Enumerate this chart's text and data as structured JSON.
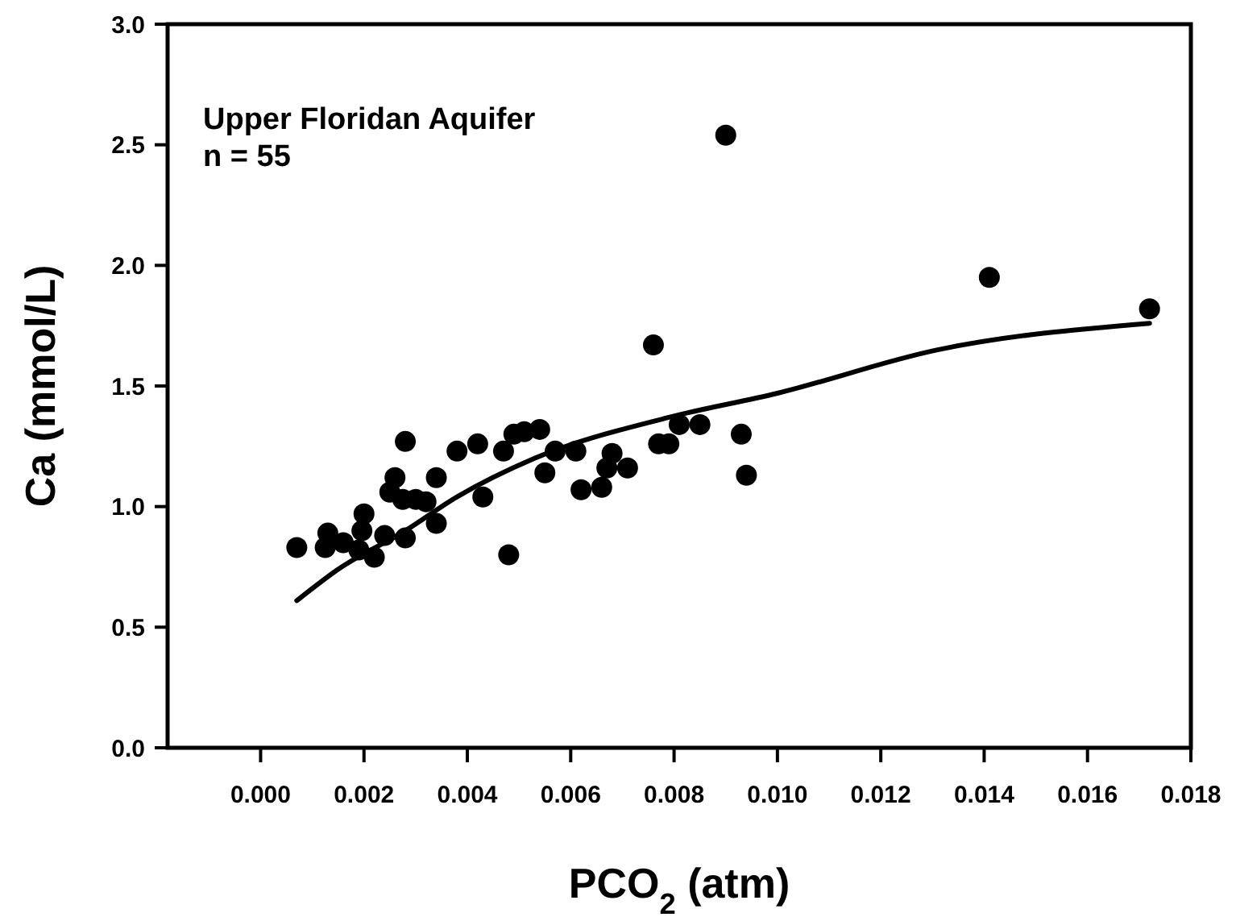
{
  "chart_data": {
    "type": "scatter",
    "xlabel": "PCO$_{2}$ (atm)",
    "ylabel": "Ca (mmol/L)",
    "annotations": [
      "Upper Floridan Aquifer",
      "n = 55"
    ],
    "xlim": [
      -0.0018,
      0.018
    ],
    "ylim": [
      0,
      3
    ],
    "xticks": [
      {
        "value": 0,
        "label": "0.000"
      },
      {
        "value": 0.002,
        "label": "0.002"
      },
      {
        "value": 0.004,
        "label": "0.004"
      },
      {
        "value": 0.006,
        "label": "0.006"
      },
      {
        "value": 0.008,
        "label": "0.008"
      },
      {
        "value": 0.01,
        "label": "0.010"
      },
      {
        "value": 0.012,
        "label": "0.012"
      },
      {
        "value": 0.014,
        "label": "0.014"
      },
      {
        "value": 0.016,
        "label": "0.016"
      },
      {
        "value": 0.018,
        "label": "0.018"
      }
    ],
    "yticks": [
      {
        "value": 0,
        "label": "0.0"
      },
      {
        "value": 0.5,
        "label": "0.5"
      },
      {
        "value": 1,
        "label": "1.0"
      },
      {
        "value": 1.5,
        "label": "1.5"
      },
      {
        "value": 2,
        "label": "2.0"
      },
      {
        "value": 2.5,
        "label": "2.5"
      },
      {
        "value": 3,
        "label": "3.0"
      }
    ],
    "grid": false,
    "series": [
      {
        "type": "scatter",
        "color": "#000000",
        "marker": "circle",
        "x": [
          0.0007,
          0.0013,
          0.00125,
          0.0016,
          0.0019,
          0.002,
          0.00196,
          0.0022,
          0.0024,
          0.0025,
          0.0026,
          0.0028,
          0.0028,
          0.00275,
          0.003,
          0.0032,
          0.0034,
          0.0034,
          0.0038,
          0.0042,
          0.0043,
          0.0048,
          0.0047,
          0.0049,
          0.0051,
          0.0054,
          0.0055,
          0.0057,
          0.0061,
          0.0076,
          0.0062,
          0.0066,
          0.0067,
          0.0068,
          0.0071,
          0.0077,
          0.0079,
          0.0081,
          0.0085,
          0.0093,
          0.0094,
          0.009,
          0.0141,
          0.0172
        ],
        "values": [
          0.83,
          0.89,
          0.83,
          0.85,
          0.82,
          0.97,
          0.9,
          0.79,
          0.88,
          1.06,
          1.12,
          1.27,
          0.87,
          1.03,
          1.03,
          1.02,
          1.12,
          0.93,
          1.23,
          1.26,
          1.04,
          0.8,
          1.23,
          1.3,
          1.31,
          1.32,
          1.14,
          1.23,
          1.23,
          1.67,
          1.07,
          1.08,
          1.16,
          1.22,
          1.16,
          1.26,
          1.26,
          1.34,
          1.34,
          1.3,
          1.13,
          2.54,
          1.95,
          1.82
        ]
      },
      {
        "type": "line",
        "color": "#000000",
        "marker": "none",
        "line_style": "solid",
        "x": [
          0.0007,
          0.0015,
          0.0028,
          0.0038,
          0.0053,
          0.0079,
          0.01,
          0.0131,
          0.0172
        ],
        "values": [
          0.61,
          0.74,
          0.9,
          1.04,
          1.2,
          1.37,
          1.47,
          1.65,
          1.76
        ]
      }
    ]
  }
}
